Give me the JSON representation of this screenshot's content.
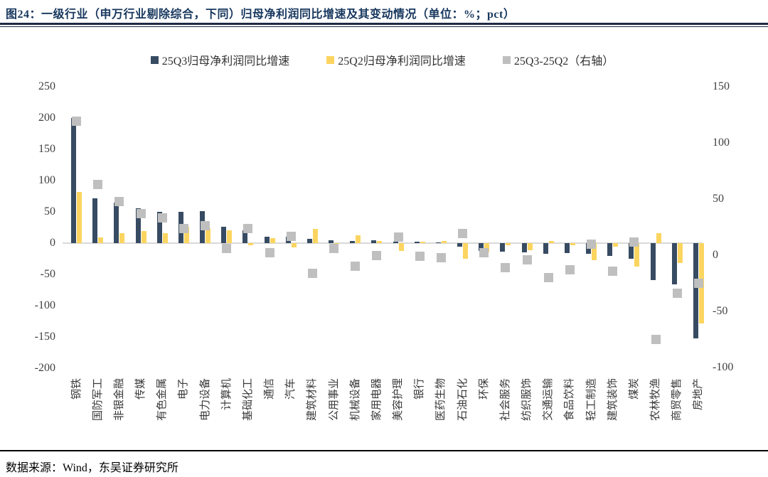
{
  "figure": {
    "title": "图24：一级行业（申万行业剔除综合，下同）归母净利润同比增速及其变动情况（单位：%；pct）",
    "source": "数据来源：Wind，东吴证券研究所"
  },
  "chart_data": {
    "type": "bar",
    "title": "一级行业归母净利润同比增速及其变动情况",
    "unit": "%；pct",
    "legend_position": "top",
    "grid": "off",
    "categories": [
      "钢铁",
      "国防军工",
      "非银金融",
      "传媒",
      "有色金属",
      "电子",
      "电力设备",
      "计算机",
      "基础化工",
      "通信",
      "汽车",
      "建筑材料",
      "公用事业",
      "机械设备",
      "家用电器",
      "美容护理",
      "银行",
      "医药生物",
      "石油石化",
      "环保",
      "社会服务",
      "纺织服饰",
      "交通运输",
      "食品饮料",
      "轻工制造",
      "建筑装饰",
      "煤炭",
      "农林牧渔",
      "商贸零售",
      "房地产"
    ],
    "series": [
      {
        "name": "25Q3归母净利润同比增速",
        "axis": "left",
        "color": "#374B62",
        "values": [
          200,
          72,
          65,
          56,
          50,
          50,
          51,
          26,
          21,
          10,
          10,
          7,
          5,
          3,
          4,
          2,
          2,
          1,
          -6,
          -13,
          -14,
          -15,
          -17,
          -16,
          -17,
          -20,
          -25,
          -59,
          -66,
          -152
        ]
      },
      {
        "name": "25Q2归母净利润同比增速",
        "axis": "left",
        "color": "#FCD560",
        "values": [
          82,
          9,
          16,
          19,
          16,
          26,
          24,
          20,
          -3,
          8,
          -7,
          23,
          -1,
          13,
          3,
          -13,
          2,
          3,
          -25,
          -15,
          -3,
          -11,
          3,
          -3,
          -27,
          -6,
          -37,
          16,
          -32,
          -128
        ]
      },
      {
        "name": "25Q3-25Q2（右轴）",
        "axis": "right",
        "color": "#BFBFBF",
        "marker": "square",
        "values": [
          119,
          63,
          48,
          37,
          33,
          24,
          26,
          6,
          24,
          2,
          17,
          -16,
          6,
          -10,
          0,
          16,
          -1,
          -2,
          19,
          2,
          -11,
          -4,
          -20,
          -13,
          10,
          -14,
          12,
          -75,
          -34,
          -25
        ]
      }
    ],
    "left_axis": {
      "min": -200,
      "max": 250,
      "step": 50,
      "ticks": [
        250,
        200,
        150,
        100,
        50,
        0,
        -50,
        -100,
        -150,
        -200
      ]
    },
    "right_axis": {
      "min": -100,
      "max": 150,
      "step": 50,
      "ticks": [
        150,
        100,
        50,
        0,
        -50,
        -100
      ]
    },
    "colors": {
      "zero_line": "#D9D9D9",
      "title": "#17375E",
      "rule": "#1F2A44",
      "tick_text": "#3f3f3f"
    }
  }
}
